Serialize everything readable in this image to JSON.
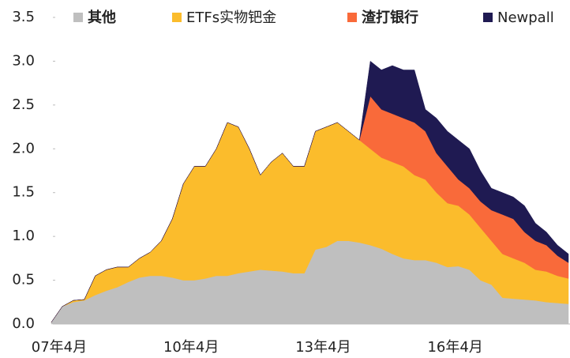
{
  "chart_data": {
    "type": "stacked_area",
    "categories": [
      null,
      "07年4月",
      null,
      null,
      null,
      null,
      null,
      null,
      null,
      null,
      null,
      null,
      null,
      "10年4月",
      null,
      null,
      null,
      null,
      null,
      null,
      null,
      null,
      null,
      null,
      null,
      "13年4月",
      null,
      null,
      null,
      null,
      null,
      null,
      null,
      null,
      null,
      null,
      null,
      "16年4月",
      null,
      null,
      null,
      null,
      null,
      null,
      null,
      null,
      null,
      null
    ],
    "series": [
      {
        "name": "其他",
        "color": "#bfbfbf",
        "values": [
          0.02,
          0.2,
          0.25,
          0.27,
          0.33,
          0.38,
          0.42,
          0.48,
          0.53,
          0.55,
          0.55,
          0.53,
          0.5,
          0.5,
          0.52,
          0.55,
          0.55,
          0.58,
          0.6,
          0.62,
          0.61,
          0.6,
          0.58,
          0.58,
          0.85,
          0.88,
          0.95,
          0.95,
          0.93,
          0.9,
          0.86,
          0.8,
          0.75,
          0.73,
          0.73,
          0.7,
          0.65,
          0.66,
          0.62,
          0.5,
          0.45,
          0.3,
          0.29,
          0.28,
          0.27,
          0.25,
          0.24,
          0.23
        ]
      },
      {
        "name": "ETFs实物钯金",
        "color": "#fbbc2c",
        "values": [
          0,
          0,
          0.02,
          0.01,
          0.22,
          0.24,
          0.23,
          0.17,
          0.22,
          0.27,
          0.4,
          0.67,
          1.1,
          1.3,
          1.28,
          1.45,
          1.75,
          1.67,
          1.4,
          1.08,
          1.24,
          1.35,
          1.22,
          1.22,
          1.35,
          1.37,
          1.35,
          1.25,
          1.17,
          1.1,
          1.04,
          1.05,
          1.05,
          0.97,
          0.92,
          0.8,
          0.73,
          0.69,
          0.63,
          0.6,
          0.5,
          0.5,
          0.46,
          0.42,
          0.35,
          0.35,
          0.31,
          0.29
        ]
      },
      {
        "name": "渣打银行",
        "color": "#f96a3a",
        "values": [
          0,
          0,
          0,
          0,
          0,
          0,
          0,
          0,
          0,
          0,
          0,
          0,
          0,
          0,
          0,
          0,
          0,
          0,
          0,
          0,
          0,
          0,
          0,
          0,
          0,
          0,
          0,
          0,
          0,
          0.6,
          0.55,
          0.55,
          0.55,
          0.6,
          0.55,
          0.45,
          0.42,
          0.3,
          0.3,
          0.3,
          0.35,
          0.45,
          0.45,
          0.35,
          0.33,
          0.3,
          0.23,
          0.18
        ]
      },
      {
        "name": "Newpall",
        "color": "#1f1a52",
        "values": [
          0,
          0,
          0,
          0,
          0,
          0,
          0,
          0,
          0,
          0,
          0,
          0,
          0,
          0,
          0,
          0,
          0,
          0,
          0,
          0,
          0,
          0,
          0,
          0,
          0,
          0,
          0,
          0,
          0,
          0.4,
          0.45,
          0.55,
          0.55,
          0.6,
          0.25,
          0.4,
          0.4,
          0.45,
          0.45,
          0.35,
          0.25,
          0.25,
          0.25,
          0.3,
          0.2,
          0.15,
          0.12,
          0.1
        ]
      }
    ],
    "ylim": [
      0,
      3.5
    ],
    "yticks": [
      {
        "value": 0,
        "label": "0.0"
      },
      0.5,
      {
        "value": 1,
        "label": "1.0"
      },
      1.5,
      {
        "value": 2,
        "label": "2.0"
      },
      2.5,
      {
        "value": 3,
        "label": "3.0"
      },
      3.5
    ],
    "legend": "top"
  }
}
